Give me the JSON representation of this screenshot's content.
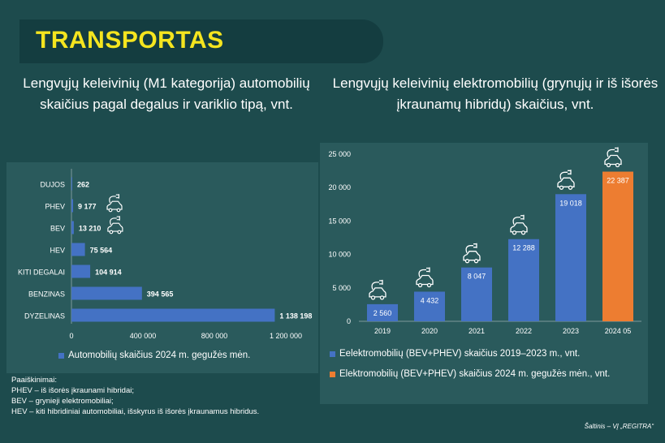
{
  "header": {
    "title": "TRANSPORTAS"
  },
  "left_heading": "Lengvųjų keleivinių (M1 kategorija) automobilių skaičius pagal degalus ir variklio tipą, vnt.",
  "right_heading": "Lengvųjų keleivinių elektromobilių (grynųjų ir iš išorės įkraunamų hibridų) skaičius, vnt.",
  "notes": {
    "title": "Paaiškinimai:",
    "lines": [
      "PHEV – iš išorės įkraunami hibridai;",
      "BEV – grynieji elektromobiliai;",
      "HEV – kiti hibridiniai automobiliai, išskyrus iš išorės įkraunamus hibridus."
    ]
  },
  "source": "Šaltinis – VĮ „REGITRA“",
  "colors": {
    "bar_blue": "#4472c4",
    "bar_orange": "#ed7d31",
    "title_yellow": "#f5e51f",
    "background": "#1d4b4d"
  },
  "chart_data": [
    {
      "type": "bar",
      "orientation": "horizontal",
      "categories": [
        "DUJOS",
        "PHEV",
        "BEV",
        "HEV",
        "KITI DEGALAI",
        "BENZINAS",
        "DYZELINAS"
      ],
      "values": [
        262,
        9177,
        13210,
        75564,
        104914,
        394565,
        1138198
      ],
      "value_labels": [
        "262",
        "9 177",
        "13 210",
        "75 564",
        "104 914",
        "394 565",
        "1 138 198"
      ],
      "xlim": [
        0,
        1200000
      ],
      "x_ticks": [
        "0",
        "400 000",
        "800 000",
        "1 200 000"
      ],
      "x_tick_values": [
        0,
        400000,
        800000,
        1200000
      ],
      "grid": false,
      "legend_position": "bottom",
      "series": [
        {
          "name": "Automobilių skaičius 2024 m. gegužės mėn.",
          "color": "#4472c4"
        }
      ],
      "icons": {
        "PHEV": "plug-car-icon",
        "BEV": "plug-car-icon"
      }
    },
    {
      "type": "bar",
      "orientation": "vertical",
      "categories": [
        "2019",
        "2020",
        "2021",
        "2022",
        "2023",
        "2024 05"
      ],
      "values": [
        2560,
        4432,
        8047,
        12288,
        19018,
        22387
      ],
      "value_labels": [
        "2 560",
        "4 432",
        "8 047",
        "12 288",
        "19 018",
        "22 387"
      ],
      "ylim": [
        0,
        25000
      ],
      "y_ticks": [
        "0",
        "5 000",
        "10 000",
        "15 000",
        "20 000",
        "25 000"
      ],
      "y_tick_values": [
        0,
        5000,
        10000,
        15000,
        20000,
        25000
      ],
      "grid": false,
      "legend_position": "bottom",
      "series": [
        {
          "name": "Eelektromobilių (BEV+PHEV) skaičius 2019–2023 m., vnt.",
          "color": "#4472c4",
          "categories": [
            "2019",
            "2020",
            "2021",
            "2022",
            "2023"
          ]
        },
        {
          "name": "Elektromobilių (BEV+PHEV) skaičius 2024 m. gegužės mėn., vnt.",
          "color": "#ed7d31",
          "categories": [
            "2024 05"
          ]
        }
      ],
      "icons": "plug-car-icon"
    }
  ]
}
